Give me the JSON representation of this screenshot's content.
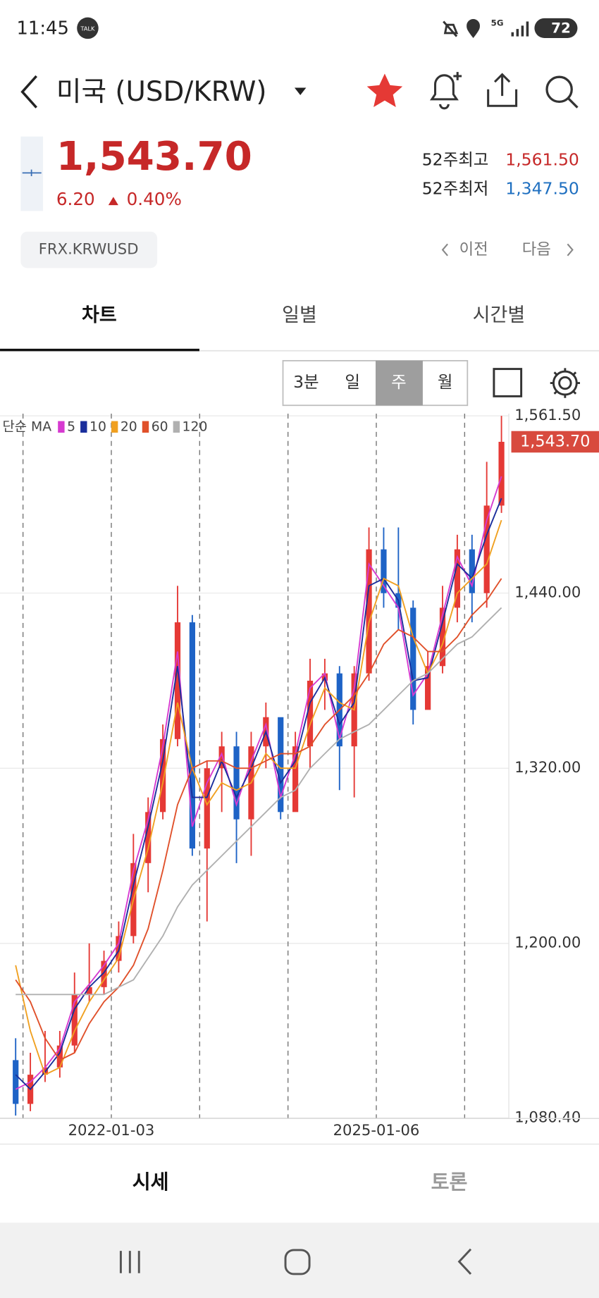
{
  "status": {
    "time": "11:45",
    "talk": "TALK",
    "network": "5G",
    "battery": "72"
  },
  "header": {
    "title": "미국 (USD/KRW)",
    "price": "1,543.70",
    "change": "6.20",
    "change_pct": "0.40%",
    "high_label": "52주최고",
    "high": "1,561.50",
    "low_label": "52주최저",
    "low": "1,347.50",
    "code": "FRX.KRWUSD",
    "prev": "이전",
    "next": "다음"
  },
  "tabs": [
    "차트",
    "일별",
    "시간별"
  ],
  "periods": [
    "3분",
    "일",
    "주",
    "월"
  ],
  "bottom_tabs": [
    "시세",
    "토론"
  ],
  "chart_data": {
    "type": "candlestick",
    "ma_label": "단순 MA",
    "categories": [
      null,
      null,
      null,
      null,
      null,
      null,
      null,
      "2022-01-03",
      null,
      null,
      null,
      null,
      null,
      null,
      null,
      null,
      null,
      null,
      null,
      null,
      null,
      null,
      null,
      null,
      null,
      "2025-01-06",
      null,
      null,
      null,
      null,
      null,
      null,
      null,
      null
    ],
    "candles": {
      "open": [
        1120,
        1090,
        1110,
        1115,
        1130,
        1165,
        1170,
        1188,
        1205,
        1255,
        1290,
        1340,
        1420,
        1265,
        1320,
        1335,
        1285,
        1335,
        1355,
        1290,
        1335,
        1380,
        1385,
        1335,
        1385,
        1470,
        1440,
        1430,
        1360,
        1390,
        1430,
        1470,
        1440,
        1500
      ],
      "high": [
        1135,
        1125,
        1140,
        1140,
        1180,
        1200,
        1195,
        1215,
        1275,
        1300,
        1350,
        1445,
        1425,
        1325,
        1345,
        1345,
        1345,
        1365,
        1340,
        1345,
        1395,
        1395,
        1390,
        1390,
        1485,
        1485,
        1485,
        1435,
        1400,
        1445,
        1480,
        1480,
        1530,
        1561.5
      ],
      "low": [
        1082,
        1085,
        1105,
        1108,
        1125,
        1160,
        1165,
        1180,
        1200,
        1235,
        1285,
        1335,
        1260,
        1215,
        1290,
        1255,
        1260,
        1320,
        1285,
        1300,
        1320,
        1360,
        1305,
        1300,
        1380,
        1430,
        1415,
        1350,
        1365,
        1385,
        1420,
        1420,
        1430,
        1495
      ],
      "close": [
        1090,
        1110,
        1115,
        1130,
        1165,
        1170,
        1188,
        1205,
        1255,
        1290,
        1340,
        1420,
        1265,
        1320,
        1335,
        1285,
        1335,
        1355,
        1290,
        1335,
        1380,
        1385,
        1335,
        1385,
        1470,
        1440,
        1430,
        1360,
        1390,
        1430,
        1470,
        1440,
        1500,
        1543.7
      ]
    },
    "up_color": "#e53935",
    "down_color": "#1e63c6",
    "series": [
      {
        "name": "5",
        "color": "#d63ad0",
        "values": [
          1100,
          1105,
          1115,
          1128,
          1160,
          1172,
          1185,
          1200,
          1250,
          1285,
          1335,
          1400,
          1280,
          1310,
          1330,
          1295,
          1325,
          1350,
          1300,
          1330,
          1375,
          1385,
          1340,
          1375,
          1460,
          1445,
          1430,
          1370,
          1385,
          1425,
          1465,
          1445,
          1490,
          1520
        ]
      },
      {
        "name": "10",
        "color": "#1a2e9c",
        "values": [
          1110,
          1100,
          1112,
          1125,
          1155,
          1170,
          1180,
          1195,
          1240,
          1280,
          1325,
          1390,
          1300,
          1300,
          1325,
          1300,
          1320,
          1345,
          1310,
          1325,
          1365,
          1382,
          1350,
          1365,
          1445,
          1450,
          1435,
          1380,
          1382,
          1420,
          1460,
          1450,
          1480,
          1505
        ]
      },
      {
        "name": "20",
        "color": "#f0a020",
        "values": [
          1185,
          1140,
          1110,
          1115,
          1140,
          1160,
          1175,
          1190,
          1230,
          1265,
          1310,
          1365,
          1320,
          1295,
          1310,
          1305,
          1310,
          1330,
          1320,
          1320,
          1350,
          1375,
          1365,
          1360,
          1420,
          1450,
          1445,
          1410,
          1385,
          1405,
          1440,
          1450,
          1460,
          1490
        ]
      },
      {
        "name": "60",
        "color": "#e0502a",
        "values": [
          1175,
          1160,
          1135,
          1120,
          1125,
          1145,
          1160,
          1170,
          1185,
          1210,
          1250,
          1295,
          1320,
          1325,
          1325,
          1320,
          1320,
          1325,
          1330,
          1330,
          1335,
          1350,
          1360,
          1370,
          1385,
          1405,
          1415,
          1410,
          1400,
          1400,
          1410,
          1425,
          1435,
          1450
        ]
      },
      {
        "name": "120",
        "color": "#b0b0b0",
        "values": [
          1165,
          1165,
          1165,
          1165,
          1165,
          1165,
          1165,
          1170,
          1175,
          1190,
          1205,
          1225,
          1240,
          1250,
          1260,
          1270,
          1280,
          1290,
          1300,
          1305,
          1320,
          1330,
          1340,
          1345,
          1350,
          1360,
          1370,
          1380,
          1385,
          1395,
          1405,
          1410,
          1420,
          1430
        ]
      }
    ],
    "ylim": [
      1080,
      1563
    ],
    "yticks": [
      {
        "value": 1080.4,
        "label": "1,080.40"
      },
      {
        "value": 1200,
        "label": "1,200.00"
      },
      {
        "value": 1320,
        "label": "1,320.00"
      },
      {
        "value": 1440,
        "label": "1,440.00"
      },
      {
        "value": 1561.5,
        "label": "1,561.50"
      }
    ],
    "current_price": {
      "value": 1543.7,
      "label": "1,543.70"
    },
    "grid": true
  }
}
